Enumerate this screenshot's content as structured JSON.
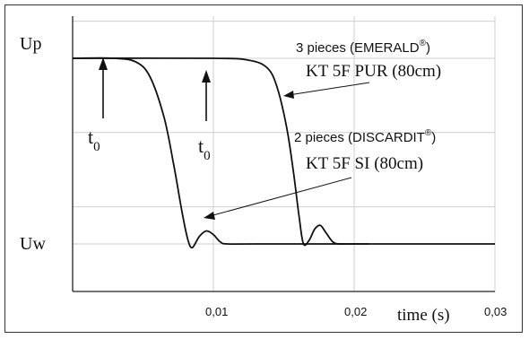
{
  "chart_data": {
    "type": "line",
    "xlabel": "time (s)",
    "xlim": [
      0,
      0.03
    ],
    "x_ticks": [
      "0,01",
      "0,02",
      "0,03"
    ],
    "y_ticks": [
      "Up",
      "Uw"
    ],
    "grid": true,
    "series": [
      {
        "name": "2 pieces (DISCARDIT®) KT 5F SI (80cm)",
        "x": [
          0.0,
          0.003,
          0.0045,
          0.0055,
          0.0065,
          0.0072,
          0.0078,
          0.0082,
          0.0085,
          0.009,
          0.0095,
          0.01,
          0.0105,
          0.011,
          0.013,
          0.021
        ],
        "y": [
          1.0,
          1.0,
          0.98,
          0.9,
          0.68,
          0.42,
          0.16,
          0.02,
          -0.02,
          0.04,
          0.07,
          0.05,
          0.01,
          0.0,
          0.0,
          0.0
        ]
      },
      {
        "name": "3 pieces (EMERALD®) KT 5F PUR (80cm)",
        "x": [
          0.0,
          0.01,
          0.0125,
          0.0138,
          0.0145,
          0.0152,
          0.0157,
          0.0161,
          0.0164,
          0.0168,
          0.0172,
          0.0176,
          0.018,
          0.0185,
          0.019,
          0.02,
          0.03
        ],
        "y": [
          1.0,
          1.0,
          0.99,
          0.95,
          0.85,
          0.63,
          0.38,
          0.14,
          0.0,
          0.02,
          0.08,
          0.1,
          0.06,
          0.01,
          0.0,
          0.0,
          0.0
        ]
      }
    ],
    "annotations": [
      {
        "label": "t",
        "subscript": "0",
        "at_x": 0.0018
      },
      {
        "label": "t",
        "subscript": "0",
        "at_x": 0.0084
      }
    ],
    "legend_labels": {
      "emerald_line1": "3 pieces (EMERALD",
      "emerald_reg": "®",
      "emerald_close": ")",
      "emerald_line2": "KT 5F PUR (80cm)",
      "discardit_line1": "2 pieces (DISCARDIT",
      "discardit_reg": "®",
      "discardit_close": ")",
      "discardit_line2": "KT 5F SI (80cm)"
    },
    "colors": {
      "line": "#111111",
      "grid": "#cfcfcf",
      "axis": "#222222"
    }
  }
}
